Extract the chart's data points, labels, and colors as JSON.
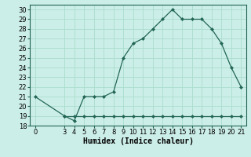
{
  "xlabel": "Humidex (Indice chaleur)",
  "bg_color": "#cceee8",
  "grid_color": "#aaddcc",
  "line_color": "#226655",
  "marker_color": "#226655",
  "xlim": [
    -0.5,
    21.5
  ],
  "ylim": [
    18,
    30.5
  ],
  "xticks": [
    0,
    3,
    4,
    5,
    6,
    7,
    8,
    9,
    10,
    11,
    12,
    13,
    14,
    15,
    16,
    17,
    18,
    19,
    20,
    21
  ],
  "yticks": [
    18,
    19,
    20,
    21,
    22,
    23,
    24,
    25,
    26,
    27,
    28,
    29,
    30
  ],
  "line_x": [
    0,
    3,
    4,
    5,
    6,
    7,
    8,
    9,
    10,
    11,
    12,
    13,
    14,
    15,
    16,
    17,
    18,
    19,
    20,
    21
  ],
  "line_y": [
    21,
    19,
    18.5,
    21,
    21,
    21,
    21.5,
    25,
    26.5,
    27,
    28,
    29,
    30,
    29,
    29,
    29,
    28,
    26.5,
    24,
    22
  ],
  "base_x": [
    3,
    4,
    5,
    6,
    7,
    8,
    9,
    10,
    11,
    12,
    13,
    14,
    15,
    16,
    17,
    18,
    19,
    20,
    21
  ],
  "base_y": [
    19,
    19,
    19,
    19,
    19,
    19,
    19,
    19,
    19,
    19,
    19,
    19,
    19,
    19,
    19,
    19,
    19,
    19,
    19
  ],
  "font_size": 6,
  "xlabel_font_size": 7
}
